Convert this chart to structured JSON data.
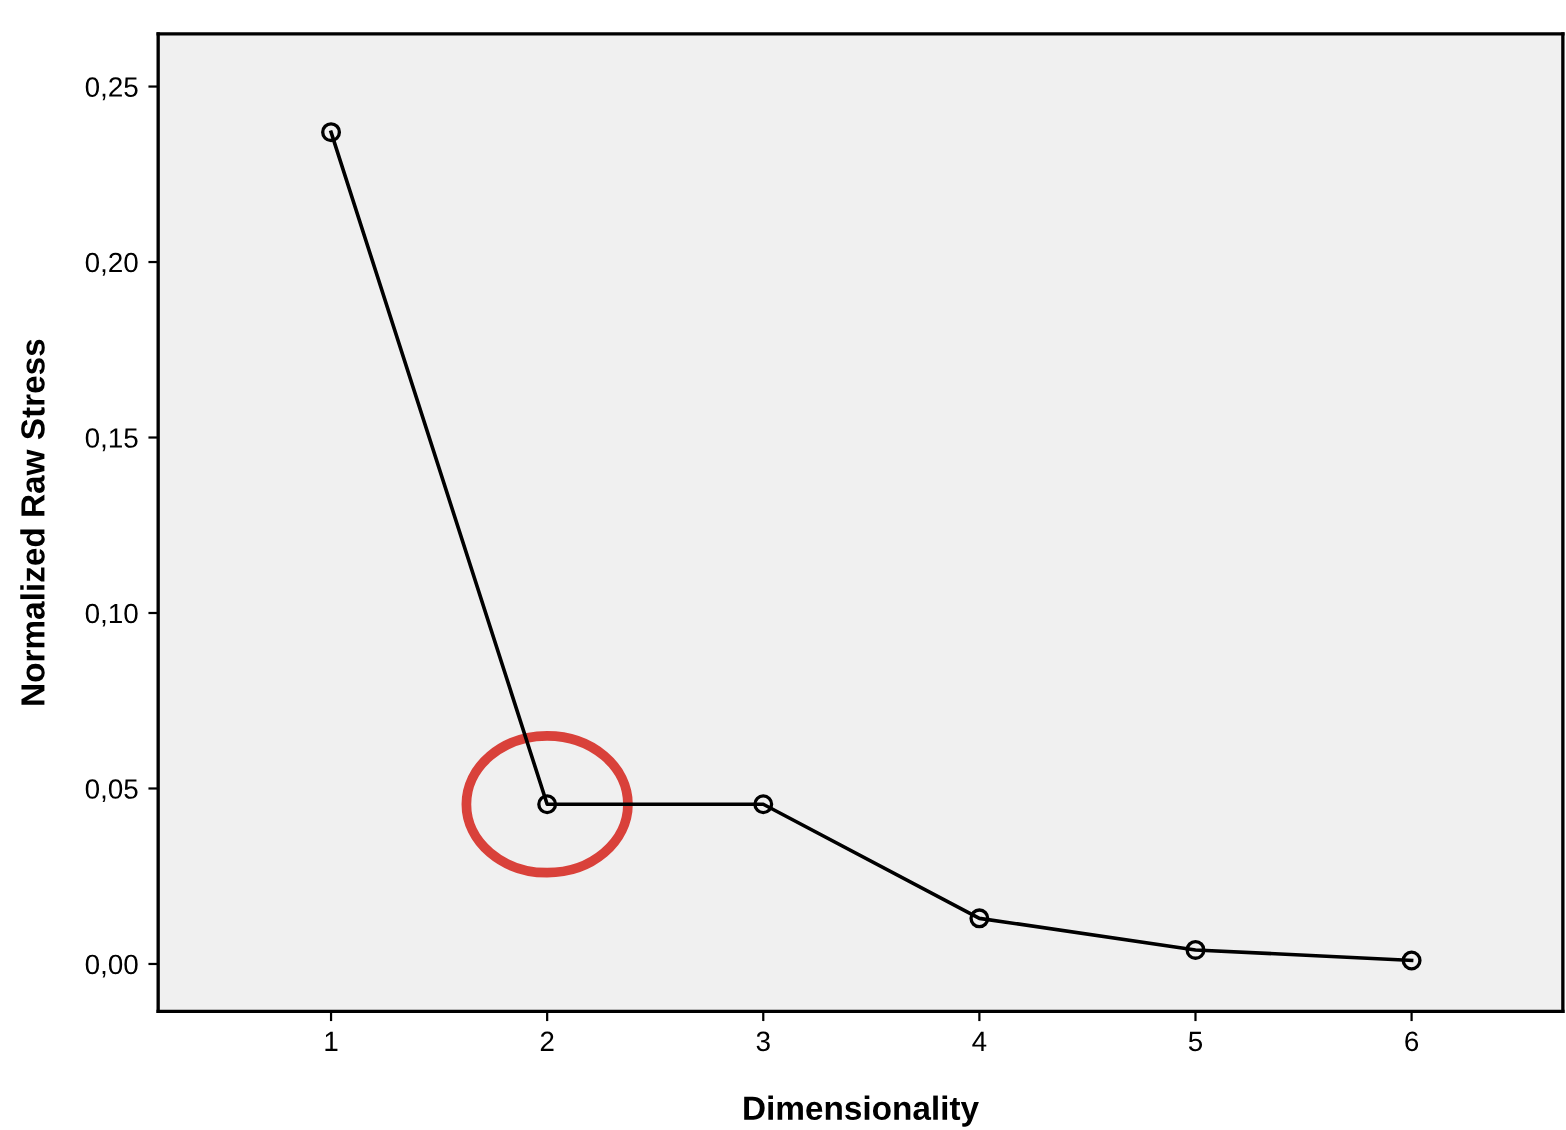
{
  "chart_data": {
    "type": "line",
    "xlabel": "Dimensionality",
    "ylabel": "Normalized Raw Stress",
    "x": [
      1,
      2,
      3,
      4,
      5,
      6
    ],
    "series": [
      {
        "color": "#000000",
        "values": [
          0.237,
          0.0455,
          0.0455,
          0.013,
          0.004,
          0.001
        ]
      }
    ],
    "xlim": [
      0.2,
      6.7
    ],
    "xticks": [
      1,
      2,
      3,
      4,
      5,
      6
    ],
    "ylim": [
      -0.0135,
      0.265
    ],
    "yticks": [
      {
        "value": 0,
        "label": "0,00"
      },
      {
        "value": 0.05,
        "label": "0,05"
      },
      {
        "value": 0.1,
        "label": "0,10"
      },
      {
        "value": 0.15,
        "label": "0,15"
      },
      {
        "value": 0.2,
        "label": "0,20"
      },
      {
        "value": 0.25,
        "label": "0,25"
      }
    ],
    "marker": "circle",
    "line_style": "solid",
    "grid": false,
    "legend": false
  }
}
